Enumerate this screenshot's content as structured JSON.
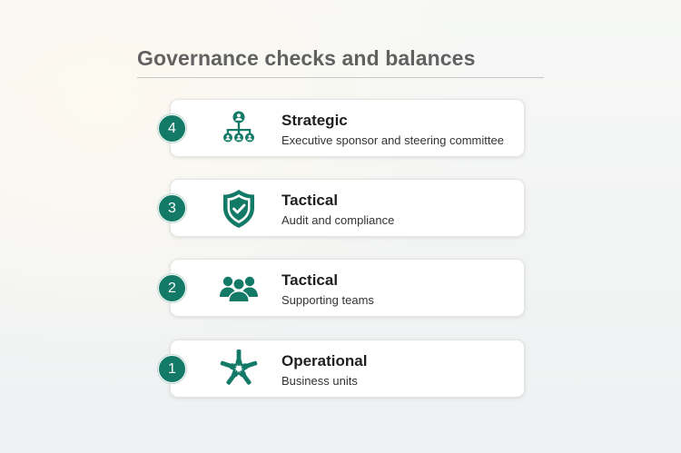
{
  "title": "Governance checks and balances",
  "colors": {
    "accent": "#137a67",
    "title_text": "#616161",
    "card_background": "#ffffff"
  },
  "levels": [
    {
      "number": "4",
      "label": "Strategic",
      "description": "Executive sponsor and steering committee",
      "icon": "org-hierarchy-icon"
    },
    {
      "number": "3",
      "label": "Tactical",
      "description": "Audit and compliance",
      "icon": "shield-check-icon"
    },
    {
      "number": "2",
      "label": "Tactical",
      "description": "Supporting teams",
      "icon": "people-team-icon"
    },
    {
      "number": "1",
      "label": "Operational",
      "description": "Business units",
      "icon": "hands-together-icon"
    }
  ]
}
